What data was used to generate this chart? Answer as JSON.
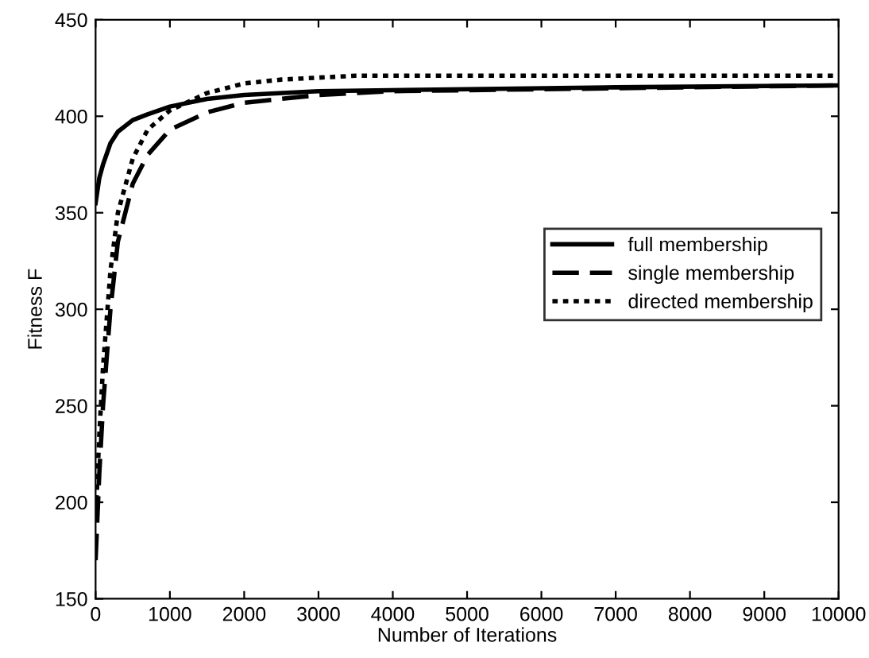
{
  "chart_data": {
    "type": "line",
    "xlabel": "Number of Iterations",
    "ylabel": "Fitness F",
    "xlim": [
      0,
      10000
    ],
    "ylim": [
      150,
      450
    ],
    "xticks": [
      0,
      1000,
      2000,
      3000,
      4000,
      5000,
      6000,
      7000,
      8000,
      9000,
      10000
    ],
    "yticks": [
      150,
      200,
      250,
      300,
      350,
      400,
      450
    ],
    "grid": false,
    "legend": "right",
    "series": [
      {
        "name": "full membership",
        "color": "#000000",
        "line_style": "solid",
        "x": [
          0,
          50,
          100,
          200,
          300,
          500,
          700,
          1000,
          1500,
          2000,
          3000,
          5000,
          7000,
          10000
        ],
        "values": [
          355,
          368,
          375,
          386,
          392,
          398,
          401,
          405,
          409,
          411,
          413,
          414,
          415,
          416
        ]
      },
      {
        "name": "single membership",
        "color": "#000000",
        "line_style": "dashed",
        "x": [
          0,
          50,
          100,
          200,
          300,
          500,
          700,
          1000,
          1500,
          2000,
          3000,
          4000,
          6000,
          8000,
          10000
        ],
        "values": [
          170,
          215,
          250,
          300,
          335,
          365,
          380,
          393,
          402,
          407,
          411,
          413,
          414,
          415,
          416
        ]
      },
      {
        "name": "directed membership",
        "color": "#000000",
        "line_style": "dotted",
        "x": [
          0,
          50,
          100,
          200,
          300,
          500,
          700,
          1000,
          1500,
          2000,
          2500,
          3500,
          6000,
          10000
        ],
        "values": [
          190,
          235,
          270,
          320,
          350,
          378,
          393,
          403,
          412,
          417,
          419,
          421,
          421,
          421
        ]
      }
    ]
  }
}
